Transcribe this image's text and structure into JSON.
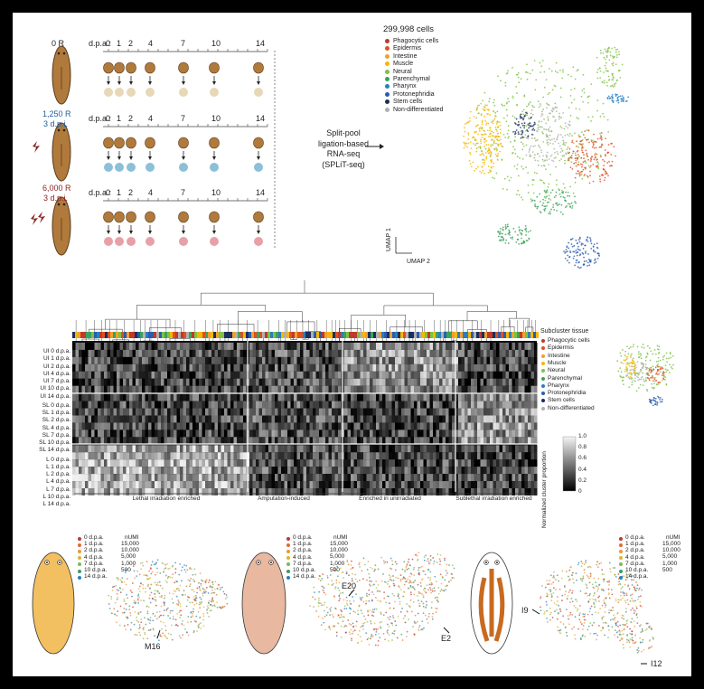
{
  "panel_a": {
    "conditions": [
      {
        "dose": "0 R",
        "sub": ""
      },
      {
        "dose": "1,250 R",
        "sub": "3 d.p.i."
      },
      {
        "dose": "6,000 R",
        "sub": "3 d.p.i."
      }
    ],
    "dpa_label": "d.p.a.:",
    "timepoints": [
      "0",
      "1",
      "2",
      "4",
      "7",
      "10",
      "14"
    ],
    "method": [
      "Split-pool",
      "ligation-based",
      "RNA-seq",
      "(SPLiT-seq)"
    ],
    "cell_count": "299,998 cells",
    "legend": [
      {
        "label": "Phagocytic cells",
        "color": "#c0392b"
      },
      {
        "label": "Epidermis",
        "color": "#e0501f"
      },
      {
        "label": "Intestine",
        "color": "#f0a030"
      },
      {
        "label": "Muscle",
        "color": "#f5b800"
      },
      {
        "label": "Neural",
        "color": "#7dc242"
      },
      {
        "label": "Parenchymal",
        "color": "#3aa35a"
      },
      {
        "label": "Pharynx",
        "color": "#2a7fbf"
      },
      {
        "label": "Protonephridia",
        "color": "#2a5db0"
      },
      {
        "label": "Stem cells",
        "color": "#1a2f5a"
      },
      {
        "label": "Non-differentiated",
        "color": "#b0b0b0"
      }
    ],
    "umap_axes": {
      "y": "UMAP 1",
      "x": "UMAP 2"
    }
  },
  "panel_b": {
    "rows": [
      "UI 0 d.p.a.",
      "UI 1 d.p.a.",
      "UI 2 d.p.a.",
      "UI 4 d.p.a.",
      "UI 7 d.p.a.",
      "UI 10 d.p.a.",
      "UI 14 d.p.a.",
      "SL 0 d.p.a.",
      "SL 1 d.p.a.",
      "SL 2 d.p.a.",
      "SL 4 d.p.a.",
      "SL 7 d.p.a.",
      "SL 10 d.p.a.",
      "SL 14 d.p.a.",
      "L 0 d.p.a.",
      "L 1 d.p.a.",
      "L 2 d.p.a.",
      "L 4 d.p.a.",
      "L 7 d.p.a.",
      "L 10 d.p.a.",
      "L 14 d.p.a."
    ],
    "groups": [
      "Lethal irradiation enriched",
      "Amputation-induced",
      "Enriched in unirradiated",
      "Sublethal irradiation enriched"
    ],
    "subcluster_title": "Subcluster tissue",
    "colorbar_label": "Normalized cluster proportion",
    "colorbar_ticks": [
      "1.0",
      "0.8",
      "0.6",
      "0.4",
      "0.2",
      "0"
    ]
  },
  "panel_c": {
    "legend_days": [
      "0 d.p.a.",
      "1 d.p.a.",
      "2 d.p.a.",
      "4 d.p.a.",
      "7 d.p.a.",
      "10 d.p.a.",
      "14 d.p.a."
    ],
    "day_colors": [
      "#c0392b",
      "#e06a3a",
      "#e89a3a",
      "#d8b830",
      "#7dbb50",
      "#3a9a6a",
      "#2a7fbf"
    ],
    "numi_title": "nUMI",
    "numi_values": [
      "15,000",
      "10,000",
      "5,000",
      "1,000",
      "500"
    ],
    "annotations": [
      "M16",
      "E20",
      "E2",
      "I9",
      "I12"
    ]
  }
}
